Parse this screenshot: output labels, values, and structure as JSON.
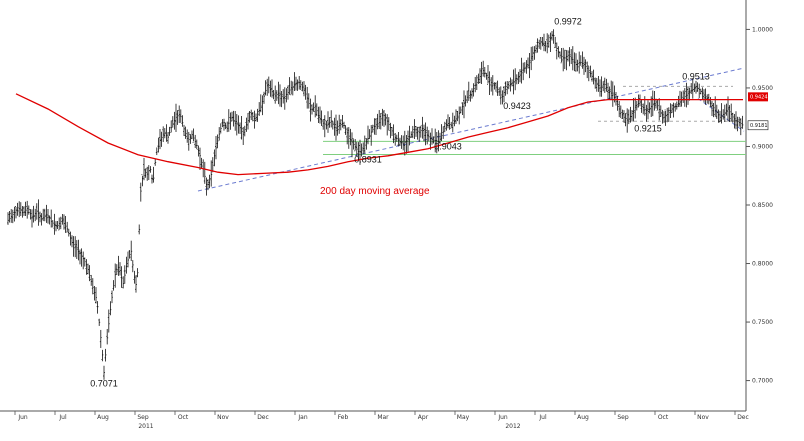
{
  "chart_data": {
    "type": "candlestick",
    "x_axis": {
      "months": [
        "Jun",
        "Jul",
        "Aug",
        "Sep",
        "Oct",
        "Nov",
        "Dec",
        "Jan",
        "Feb",
        "Mar",
        "Apr",
        "May",
        "Jun",
        "Jul",
        "Aug",
        "Sep",
        "Oct",
        "Nov",
        "Dec"
      ],
      "years": [
        "2011",
        "2012"
      ]
    },
    "y_axis": {
      "range": [
        0.68,
        1.02
      ],
      "tick_labels": [
        "1.0000",
        "0.9500",
        "0.9000",
        "0.8500",
        "0.8000",
        "0.7500",
        "0.7000"
      ],
      "tick_values": [
        1.0,
        0.95,
        0.9,
        0.85,
        0.8,
        0.75,
        0.7
      ]
    },
    "price_path": [
      [
        0,
        0.837
      ],
      [
        5,
        0.842
      ],
      [
        10,
        0.848
      ],
      [
        15,
        0.843
      ],
      [
        20,
        0.848
      ],
      [
        24,
        0.839
      ],
      [
        29,
        0.845
      ],
      [
        34,
        0.838
      ],
      [
        39,
        0.842
      ],
      [
        44,
        0.835
      ],
      [
        49,
        0.832
      ],
      [
        54,
        0.837
      ],
      [
        59,
        0.83
      ],
      [
        64,
        0.818
      ],
      [
        69,
        0.812
      ],
      [
        74,
        0.806
      ],
      [
        79,
        0.798
      ],
      [
        84,
        0.782
      ],
      [
        89,
        0.768
      ],
      [
        93,
        0.735
      ],
      [
        96,
        0.707
      ],
      [
        99,
        0.735
      ],
      [
        103,
        0.765
      ],
      [
        107,
        0.79
      ],
      [
        111,
        0.798
      ],
      [
        115,
        0.782
      ],
      [
        119,
        0.8
      ],
      [
        123,
        0.812
      ],
      [
        126,
        0.79
      ],
      [
        129,
        0.778
      ],
      [
        131,
        0.825
      ],
      [
        133,
        0.866
      ],
      [
        136,
        0.88
      ],
      [
        139,
        0.876
      ],
      [
        142,
        0.882
      ],
      [
        145,
        0.868
      ],
      [
        148,
        0.893
      ],
      [
        152,
        0.905
      ],
      [
        156,
        0.912
      ],
      [
        160,
        0.908
      ],
      [
        164,
        0.918
      ],
      [
        168,
        0.925
      ],
      [
        172,
        0.928
      ],
      [
        176,
        0.915
      ],
      [
        180,
        0.905
      ],
      [
        184,
        0.91
      ],
      [
        188,
        0.903
      ],
      [
        192,
        0.892
      ],
      [
        196,
        0.878
      ],
      [
        199,
        0.865
      ],
      [
        203,
        0.875
      ],
      [
        207,
        0.895
      ],
      [
        211,
        0.91
      ],
      [
        215,
        0.922
      ],
      [
        219,
        0.915
      ],
      [
        223,
        0.926
      ],
      [
        227,
        0.92
      ],
      [
        231,
        0.918
      ],
      [
        235,
        0.91
      ],
      [
        239,
        0.92
      ],
      [
        243,
        0.928
      ],
      [
        247,
        0.923
      ],
      [
        251,
        0.93
      ],
      [
        255,
        0.94
      ],
      [
        259,
        0.952
      ],
      [
        263,
        0.948
      ],
      [
        267,
        0.943
      ],
      [
        271,
        0.946
      ],
      [
        275,
        0.941
      ],
      [
        279,
        0.945
      ],
      [
        283,
        0.95
      ],
      [
        287,
        0.953
      ],
      [
        291,
        0.955
      ],
      [
        295,
        0.95
      ],
      [
        299,
        0.942
      ],
      [
        303,
        0.93
      ],
      [
        307,
        0.935
      ],
      [
        311,
        0.925
      ],
      [
        315,
        0.92
      ],
      [
        319,
        0.918
      ],
      [
        323,
        0.922
      ],
      [
        327,
        0.915
      ],
      [
        331,
        0.918
      ],
      [
        335,
        0.92
      ],
      [
        339,
        0.912
      ],
      [
        343,
        0.905
      ],
      [
        347,
        0.9
      ],
      [
        351,
        0.895
      ],
      [
        355,
        0.898
      ],
      [
        359,
        0.905
      ],
      [
        363,
        0.912
      ],
      [
        367,
        0.918
      ],
      [
        371,
        0.92
      ],
      [
        375,
        0.928
      ],
      [
        379,
        0.922
      ],
      [
        383,
        0.915
      ],
      [
        387,
        0.908
      ],
      [
        391,
        0.905
      ],
      [
        395,
        0.902
      ],
      [
        399,
        0.905
      ],
      [
        403,
        0.91
      ],
      [
        407,
        0.915
      ],
      [
        411,
        0.912
      ],
      [
        415,
        0.916
      ],
      [
        419,
        0.91
      ],
      [
        423,
        0.906
      ],
      [
        427,
        0.905
      ],
      [
        431,
        0.904
      ],
      [
        435,
        0.912
      ],
      [
        439,
        0.92
      ],
      [
        443,
        0.918
      ],
      [
        447,
        0.922
      ],
      [
        451,
        0.928
      ],
      [
        455,
        0.935
      ],
      [
        459,
        0.942
      ],
      [
        463,
        0.945
      ],
      [
        467,
        0.952
      ],
      [
        471,
        0.958
      ],
      [
        475,
        0.965
      ],
      [
        479,
        0.96
      ],
      [
        483,
        0.955
      ],
      [
        487,
        0.952
      ],
      [
        491,
        0.947
      ],
      [
        494,
        0.942
      ],
      [
        497,
        0.948
      ],
      [
        501,
        0.952
      ],
      [
        505,
        0.955
      ],
      [
        509,
        0.958
      ],
      [
        513,
        0.962
      ],
      [
        517,
        0.968
      ],
      [
        521,
        0.97
      ],
      [
        525,
        0.98
      ],
      [
        529,
        0.985
      ],
      [
        533,
        0.99
      ],
      [
        537,
        0.985
      ],
      [
        541,
        0.99
      ],
      [
        545,
        0.997
      ],
      [
        548,
        0.985
      ],
      [
        552,
        0.978
      ],
      [
        556,
        0.975
      ],
      [
        560,
        0.978
      ],
      [
        564,
        0.975
      ],
      [
        568,
        0.97
      ],
      [
        572,
        0.972
      ],
      [
        576,
        0.97
      ],
      [
        580,
        0.966
      ],
      [
        584,
        0.96
      ],
      [
        588,
        0.955
      ],
      [
        592,
        0.95
      ],
      [
        596,
        0.954
      ],
      [
        600,
        0.948
      ],
      [
        604,
        0.945
      ],
      [
        608,
        0.94
      ],
      [
        612,
        0.93
      ],
      [
        616,
        0.925
      ],
      [
        620,
        0.922
      ],
      [
        624,
        0.928
      ],
      [
        628,
        0.935
      ],
      [
        632,
        0.938
      ],
      [
        636,
        0.932
      ],
      [
        640,
        0.93
      ],
      [
        644,
        0.935
      ],
      [
        648,
        0.938
      ],
      [
        652,
        0.93
      ],
      [
        656,
        0.925
      ],
      [
        660,
        0.928
      ],
      [
        664,
        0.932
      ],
      [
        668,
        0.935
      ],
      [
        672,
        0.938
      ],
      [
        676,
        0.942
      ],
      [
        680,
        0.945
      ],
      [
        684,
        0.948
      ],
      [
        688,
        0.951
      ],
      [
        692,
        0.948
      ],
      [
        696,
        0.944
      ],
      [
        700,
        0.94
      ],
      [
        704,
        0.935
      ],
      [
        708,
        0.93
      ],
      [
        712,
        0.925
      ],
      [
        716,
        0.928
      ],
      [
        720,
        0.932
      ],
      [
        724,
        0.926
      ],
      [
        728,
        0.922
      ],
      [
        732,
        0.92
      ],
      [
        735,
        0.918
      ]
    ],
    "moving_average_200": [
      [
        8,
        0.945
      ],
      [
        40,
        0.932
      ],
      [
        70,
        0.917
      ],
      [
        100,
        0.903
      ],
      [
        130,
        0.893
      ],
      [
        160,
        0.887
      ],
      [
        190,
        0.882
      ],
      [
        210,
        0.878
      ],
      [
        230,
        0.876
      ],
      [
        255,
        0.877
      ],
      [
        280,
        0.878
      ],
      [
        300,
        0.88
      ],
      [
        320,
        0.883
      ],
      [
        340,
        0.887
      ],
      [
        360,
        0.89
      ],
      [
        380,
        0.892
      ],
      [
        400,
        0.895
      ],
      [
        420,
        0.898
      ],
      [
        440,
        0.903
      ],
      [
        460,
        0.908
      ],
      [
        480,
        0.912
      ],
      [
        500,
        0.916
      ],
      [
        520,
        0.921
      ],
      [
        540,
        0.926
      ],
      [
        560,
        0.933
      ],
      [
        580,
        0.938
      ],
      [
        600,
        0.94
      ],
      [
        620,
        0.94
      ],
      [
        650,
        0.94
      ],
      [
        680,
        0.94
      ],
      [
        700,
        0.94
      ],
      [
        735,
        0.94
      ]
    ],
    "current_price_tag": "0.9181",
    "ma_price_tag": "0.9424",
    "annotations": [
      {
        "label": "0.7071",
        "x": 96,
        "y": 0.7071
      },
      {
        "label": "0.8931",
        "x": 355,
        "y": 0.8931
      },
      {
        "label": "0.9043",
        "x": 432,
        "y": 0.9043
      },
      {
        "label": "0.9423",
        "x": 494,
        "y": 0.9423
      },
      {
        "label": "0.9972",
        "x": 545,
        "y": 0.9972
      },
      {
        "label": "0.9215",
        "x": 625,
        "y": 0.9215
      },
      {
        "label": "0.9513",
        "x": 688,
        "y": 0.9513
      }
    ],
    "legend_text": "200 day moving average",
    "colors": {
      "price": "#111111",
      "moving_average": "#e00000",
      "trendline_dashed": "#6b7bd0",
      "horizontal_support": "#7fcf7f",
      "axis": "#555555"
    }
  }
}
